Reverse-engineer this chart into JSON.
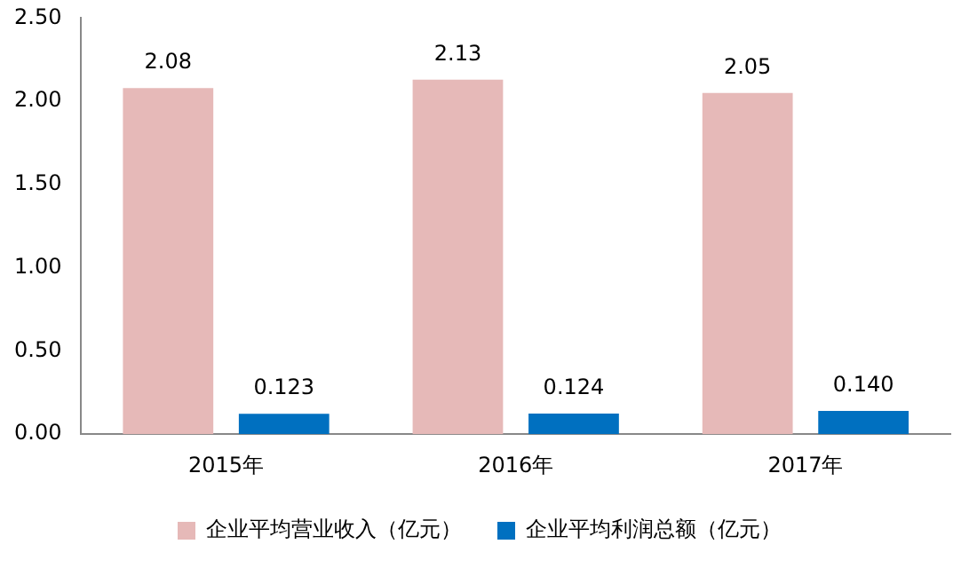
{
  "chart_data": {
    "type": "bar",
    "categories": [
      "2015年",
      "2016年",
      "2017年"
    ],
    "series": [
      {
        "name": "企业平均营业收入（亿元）",
        "color": "#e6b9b8",
        "values": [
          2.08,
          2.13,
          2.05
        ],
        "value_labels": [
          "2.08",
          "2.13",
          "2.05"
        ]
      },
      {
        "name": "企业平均利润总额（亿元）",
        "color": "#0070c0",
        "values": [
          0.123,
          0.124,
          0.14
        ],
        "value_labels": [
          "0.123",
          "0.124",
          "0.140"
        ]
      }
    ],
    "ylim": [
      0,
      2.5
    ],
    "yticks": [
      {
        "value": 0,
        "label": "0.00"
      },
      {
        "value": 0.5,
        "label": "0.50"
      },
      {
        "value": 1,
        "label": "1.00"
      },
      {
        "value": 1.5,
        "label": "1.50"
      },
      {
        "value": 2,
        "label": "2.00"
      },
      {
        "value": 2.5,
        "label": "2.50"
      }
    ],
    "grid": false,
    "legend": "bottom"
  }
}
